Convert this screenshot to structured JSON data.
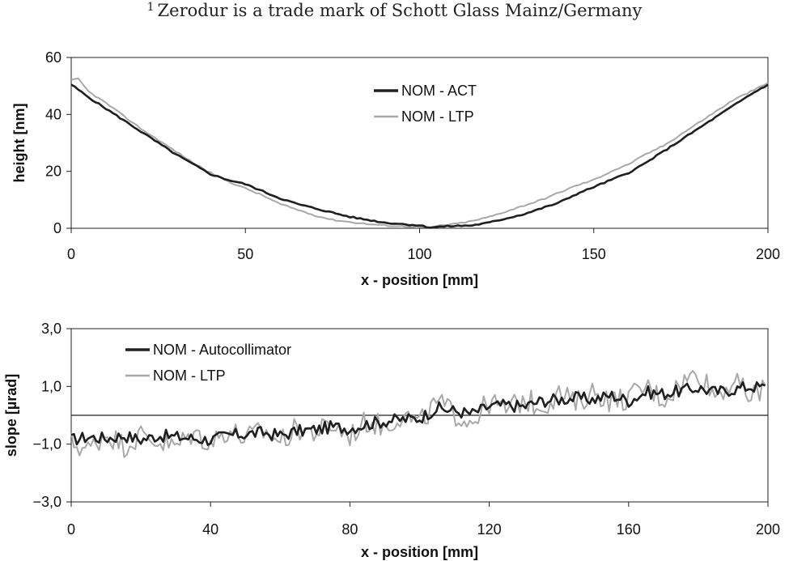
{
  "footnote": {
    "marker": "1",
    "text": "Zerodur is a trade mark of Schott Glass Mainz/Germany"
  },
  "colors": {
    "dark_series": "#1f1f1f",
    "light_series": "#a8a8a8",
    "axis": "#222222"
  },
  "chart_data": [
    {
      "type": "line",
      "xlabel": "x - position [mm]",
      "ylabel": "height [nm]",
      "xlim": [
        0,
        200
      ],
      "ylim": [
        0,
        60
      ],
      "xticks": [
        0,
        50,
        100,
        150,
        200
      ],
      "yticks": [
        0,
        20,
        40,
        60
      ],
      "xtick_labels": [
        "0",
        "50",
        "100",
        "150",
        "200"
      ],
      "ytick_labels": [
        "0",
        "20",
        "40",
        "60"
      ],
      "legend_position": "top-center",
      "series": [
        {
          "name": "NOM - ACT",
          "color": "#1f1f1f",
          "x": [
            0,
            5,
            10,
            15,
            20,
            25,
            30,
            35,
            40,
            45,
            50,
            55,
            60,
            65,
            70,
            75,
            80,
            85,
            90,
            95,
            100,
            103,
            105,
            110,
            115,
            120,
            125,
            130,
            135,
            140,
            145,
            150,
            155,
            160,
            165,
            170,
            175,
            180,
            185,
            190,
            195,
            200
          ],
          "values": [
            50.5,
            46,
            42,
            38,
            34,
            30,
            26,
            22.5,
            19,
            17,
            15.5,
            13,
            10.5,
            8.5,
            7,
            5.5,
            4,
            3,
            2,
            1.5,
            1,
            0.3,
            0.5,
            0.8,
            1,
            2,
            3.5,
            5,
            7,
            9,
            12,
            14.5,
            17,
            19.5,
            23,
            27,
            31,
            35,
            39,
            43,
            47,
            50.5
          ]
        },
        {
          "name": "NOM - LTP",
          "color": "#a8a8a8",
          "x": [
            0,
            2,
            5,
            10,
            15,
            20,
            25,
            30,
            35,
            40,
            45,
            50,
            55,
            60,
            65,
            70,
            75,
            80,
            85,
            90,
            95,
            100,
            103,
            105,
            110,
            115,
            120,
            125,
            130,
            135,
            140,
            145,
            150,
            155,
            160,
            165,
            170,
            175,
            180,
            185,
            190,
            195,
            200
          ],
          "values": [
            52,
            52.5,
            48,
            44,
            39.5,
            35,
            31,
            27,
            23,
            19.5,
            16.5,
            14,
            11.5,
            8.5,
            6.5,
            4.5,
            3,
            2.2,
            1.5,
            1,
            0.7,
            0.5,
            0.2,
            0.8,
            1.5,
            2.5,
            4,
            6,
            8,
            10,
            12.5,
            15,
            17,
            20,
            22.5,
            26,
            29,
            33,
            37,
            41,
            45,
            48,
            51
          ]
        }
      ]
    },
    {
      "type": "line",
      "xlabel": "x - position [mm]",
      "ylabel": "slope [µrad]",
      "xlim": [
        0,
        200
      ],
      "ylim": [
        -3,
        3
      ],
      "xticks": [
        0,
        40,
        80,
        120,
        160,
        200
      ],
      "yticks": [
        -3,
        -1,
        1,
        3
      ],
      "xtick_labels": [
        "0",
        "40",
        "80",
        "120",
        "160",
        "200"
      ],
      "ytick_labels": [
        "−3,0",
        "−1,0",
        "1,0",
        "3,0"
      ],
      "zero_line": 0,
      "legend_position": "top-left",
      "series": [
        {
          "name": "NOM - Autocollimator",
          "color": "#1f1f1f",
          "x": [
            0,
            5,
            10,
            15,
            20,
            25,
            30,
            35,
            40,
            45,
            50,
            55,
            60,
            65,
            70,
            75,
            80,
            85,
            90,
            95,
            100,
            105,
            110,
            115,
            120,
            125,
            130,
            135,
            140,
            145,
            150,
            155,
            160,
            165,
            170,
            175,
            180,
            185,
            190,
            195,
            200
          ],
          "values": [
            -0.85,
            -0.75,
            -0.8,
            -0.7,
            -0.85,
            -0.7,
            -0.75,
            -0.8,
            -0.85,
            -0.7,
            -0.65,
            -0.6,
            -0.7,
            -0.55,
            -0.5,
            -0.4,
            -0.45,
            -0.3,
            -0.2,
            -0.15,
            -0.1,
            0.25,
            0.15,
            0.05,
            0.3,
            0.35,
            0.3,
            0.5,
            0.55,
            0.6,
            0.55,
            0.7,
            0.5,
            0.8,
            0.75,
            0.85,
            0.95,
            0.8,
            0.9,
            1.0,
            0.95
          ]
        },
        {
          "name": "NOM - LTP",
          "color": "#a8a8a8",
          "x": [
            0,
            5,
            10,
            15,
            20,
            25,
            30,
            35,
            40,
            45,
            50,
            55,
            60,
            65,
            70,
            75,
            80,
            85,
            90,
            95,
            100,
            105,
            110,
            115,
            120,
            125,
            130,
            135,
            140,
            145,
            150,
            155,
            160,
            165,
            170,
            175,
            180,
            185,
            190,
            195,
            200
          ],
          "values": [
            -0.95,
            -1.2,
            -0.6,
            -1.05,
            -0.7,
            -0.9,
            -1.1,
            -0.6,
            -0.95,
            -0.5,
            -0.8,
            -0.55,
            -0.9,
            -0.45,
            -0.6,
            -0.35,
            -0.7,
            -0.2,
            -0.4,
            0.05,
            -0.3,
            0.45,
            0.05,
            -0.2,
            0.45,
            0.2,
            0.55,
            0.3,
            0.75,
            0.4,
            0.85,
            0.5,
            0.6,
            1.0,
            0.55,
            1.1,
            1.5,
            0.7,
            1.2,
            0.6,
            1.1
          ]
        }
      ]
    }
  ]
}
